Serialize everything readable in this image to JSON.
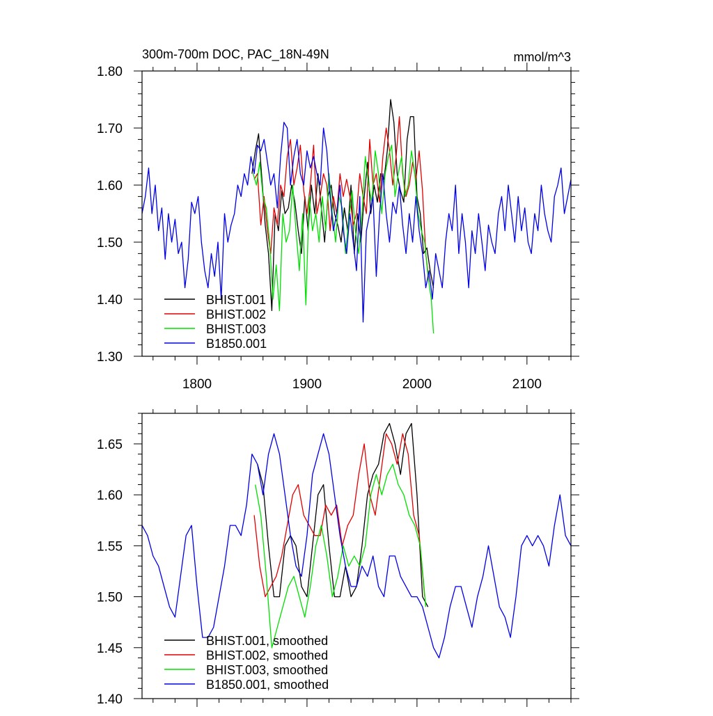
{
  "colors": {
    "black": "#000000",
    "red": "#e00000",
    "green": "#00e000",
    "blue": "#0000e6"
  },
  "chart_data": [
    {
      "type": "line",
      "title": "300m-700m DOC, PAC_18N-49N",
      "units": "mmol/m^3",
      "xlim": [
        1750,
        2140
      ],
      "ylim": [
        1.3,
        1.8
      ],
      "xticks": [
        1800,
        1900,
        2000,
        2100
      ],
      "xtick_labels": [
        "1800",
        "1900",
        "2000",
        "2100"
      ],
      "yticks": [
        1.3,
        1.4,
        1.5,
        1.6,
        1.7,
        1.8
      ],
      "ytick_labels": [
        "1.30",
        "1.40",
        "1.50",
        "1.60",
        "1.70",
        "1.80"
      ],
      "legend_position": "bottom-left",
      "series": [
        {
          "name": "BHIST.001",
          "color": "#000000",
          "x": [
            1850,
            1853,
            1856,
            1859,
            1862,
            1865,
            1868,
            1871,
            1874,
            1877,
            1880,
            1883,
            1886,
            1889,
            1892,
            1895,
            1898,
            1901,
            1904,
            1907,
            1910,
            1913,
            1916,
            1919,
            1922,
            1925,
            1928,
            1931,
            1934,
            1937,
            1940,
            1943,
            1946,
            1949,
            1952,
            1955,
            1958,
            1961,
            1964,
            1967,
            1970,
            1973,
            1976,
            1979,
            1982,
            1985,
            1988,
            1991,
            1994,
            1997,
            2000,
            2003,
            2006,
            2009,
            2012,
            2015
          ],
          "y": [
            1.62,
            1.66,
            1.69,
            1.61,
            1.53,
            1.48,
            1.38,
            1.55,
            1.52,
            1.59,
            1.55,
            1.56,
            1.6,
            1.57,
            1.52,
            1.48,
            1.58,
            1.52,
            1.6,
            1.55,
            1.62,
            1.56,
            1.5,
            1.58,
            1.6,
            1.55,
            1.53,
            1.5,
            1.56,
            1.52,
            1.6,
            1.48,
            1.55,
            1.5,
            1.58,
            1.64,
            1.55,
            1.6,
            1.57,
            1.62,
            1.61,
            1.66,
            1.75,
            1.71,
            1.62,
            1.59,
            1.57,
            1.68,
            1.72,
            1.72,
            1.58,
            1.55,
            1.48,
            1.49,
            1.45,
            1.42
          ]
        },
        {
          "name": "BHIST.002",
          "color": "#e00000",
          "x": [
            1852,
            1855,
            1858,
            1861,
            1864,
            1867,
            1870,
            1873,
            1876,
            1879,
            1882,
            1885,
            1888,
            1891,
            1894,
            1897,
            1900,
            1903,
            1906,
            1909,
            1912,
            1915,
            1918,
            1921,
            1924,
            1927,
            1930,
            1933,
            1936,
            1939,
            1942,
            1945,
            1948,
            1951,
            1954,
            1957,
            1960,
            1963,
            1966,
            1969,
            1972,
            1975,
            1978,
            1981,
            1984,
            1987,
            1990,
            1993,
            1996,
            1999,
            2002,
            2005,
            2008,
            2011
          ],
          "y": [
            1.61,
            1.62,
            1.53,
            1.58,
            1.52,
            1.48,
            1.56,
            1.53,
            1.6,
            1.58,
            1.65,
            1.68,
            1.6,
            1.63,
            1.67,
            1.59,
            1.55,
            1.6,
            1.67,
            1.55,
            1.58,
            1.62,
            1.6,
            1.52,
            1.58,
            1.55,
            1.62,
            1.58,
            1.61,
            1.58,
            1.53,
            1.55,
            1.62,
            1.58,
            1.55,
            1.68,
            1.6,
            1.62,
            1.57,
            1.65,
            1.7,
            1.66,
            1.6,
            1.65,
            1.72,
            1.62,
            1.58,
            1.6,
            1.64,
            1.61,
            1.66,
            1.59,
            1.48,
            1.43
          ]
        },
        {
          "name": "BHIST.003",
          "color": "#00e000",
          "x": [
            1851,
            1854,
            1857,
            1860,
            1863,
            1866,
            1869,
            1872,
            1875,
            1878,
            1881,
            1884,
            1887,
            1890,
            1893,
            1896,
            1899,
            1902,
            1905,
            1908,
            1911,
            1914,
            1917,
            1920,
            1923,
            1926,
            1929,
            1932,
            1935,
            1938,
            1941,
            1944,
            1947,
            1950,
            1953,
            1956,
            1959,
            1962,
            1965,
            1968,
            1971,
            1974,
            1977,
            1980,
            1983,
            1986,
            1989,
            1992,
            1995,
            1998,
            2001,
            2004,
            2007,
            2010,
            2013,
            2015
          ],
          "y": [
            1.62,
            1.6,
            1.64,
            1.58,
            1.56,
            1.5,
            1.4,
            1.46,
            1.38,
            1.55,
            1.5,
            1.52,
            1.6,
            1.52,
            1.45,
            1.55,
            1.39,
            1.58,
            1.52,
            1.55,
            1.5,
            1.58,
            1.52,
            1.62,
            1.55,
            1.5,
            1.58,
            1.56,
            1.48,
            1.54,
            1.59,
            1.52,
            1.48,
            1.55,
            1.65,
            1.6,
            1.57,
            1.66,
            1.62,
            1.55,
            1.62,
            1.65,
            1.67,
            1.58,
            1.62,
            1.65,
            1.58,
            1.6,
            1.66,
            1.62,
            1.55,
            1.52,
            1.5,
            1.44,
            1.4,
            1.34
          ]
        },
        {
          "name": "B1850.001",
          "color": "#0000e6",
          "x": [
            1750,
            1753,
            1756,
            1759,
            1762,
            1765,
            1768,
            1771,
            1774,
            1777,
            1780,
            1783,
            1786,
            1789,
            1792,
            1795,
            1798,
            1801,
            1804,
            1807,
            1810,
            1813,
            1816,
            1819,
            1822,
            1825,
            1828,
            1831,
            1834,
            1837,
            1840,
            1843,
            1846,
            1849,
            1852,
            1855,
            1858,
            1861,
            1864,
            1867,
            1870,
            1873,
            1876,
            1879,
            1882,
            1885,
            1888,
            1891,
            1894,
            1897,
            1900,
            1903,
            1906,
            1909,
            1912,
            1915,
            1918,
            1921,
            1924,
            1927,
            1930,
            1933,
            1936,
            1939,
            1942,
            1945,
            1948,
            1951,
            1954,
            1957,
            1960,
            1963,
            1966,
            1969,
            1972,
            1975,
            1978,
            1981,
            1984,
            1987,
            1990,
            1993,
            1996,
            1999,
            2002,
            2005,
            2008,
            2011,
            2014,
            2017,
            2020,
            2023,
            2026,
            2029,
            2032,
            2035,
            2038,
            2041,
            2044,
            2047,
            2050,
            2053,
            2056,
            2059,
            2062,
            2065,
            2068,
            2071,
            2074,
            2077,
            2080,
            2083,
            2086,
            2089,
            2092,
            2095,
            2098,
            2101,
            2104,
            2107,
            2110,
            2113,
            2116,
            2119,
            2122,
            2125,
            2128,
            2131,
            2134,
            2137,
            2140
          ],
          "y": [
            1.55,
            1.58,
            1.63,
            1.55,
            1.6,
            1.52,
            1.56,
            1.47,
            1.55,
            1.5,
            1.54,
            1.48,
            1.5,
            1.42,
            1.47,
            1.57,
            1.55,
            1.58,
            1.5,
            1.45,
            1.42,
            1.48,
            1.44,
            1.5,
            1.4,
            1.55,
            1.5,
            1.53,
            1.55,
            1.6,
            1.58,
            1.62,
            1.6,
            1.65,
            1.62,
            1.67,
            1.66,
            1.68,
            1.64,
            1.6,
            1.62,
            1.56,
            1.65,
            1.71,
            1.7,
            1.6,
            1.65,
            1.68,
            1.62,
            1.6,
            1.66,
            1.63,
            1.65,
            1.62,
            1.6,
            1.7,
            1.66,
            1.58,
            1.52,
            1.55,
            1.6,
            1.52,
            1.48,
            1.55,
            1.5,
            1.45,
            1.58,
            1.36,
            1.52,
            1.55,
            1.58,
            1.44,
            1.55,
            1.62,
            1.55,
            1.5,
            1.57,
            1.55,
            1.6,
            1.53,
            1.48,
            1.55,
            1.5,
            1.58,
            1.52,
            1.48,
            1.42,
            1.45,
            1.4,
            1.48,
            1.45,
            1.42,
            1.5,
            1.55,
            1.52,
            1.6,
            1.48,
            1.55,
            1.5,
            1.42,
            1.52,
            1.48,
            1.55,
            1.5,
            1.45,
            1.53,
            1.5,
            1.48,
            1.55,
            1.58,
            1.52,
            1.6,
            1.55,
            1.5,
            1.58,
            1.52,
            1.56,
            1.5,
            1.48,
            1.55,
            1.52,
            1.6,
            1.55,
            1.52,
            1.5,
            1.58,
            1.6,
            1.63,
            1.55,
            1.58,
            1.61
          ]
        }
      ]
    },
    {
      "type": "line",
      "title": "",
      "xlim": [
        1750,
        2140
      ],
      "ylim": [
        1.4,
        1.68
      ],
      "xticks": [
        1800,
        1900,
        2000,
        2100
      ],
      "yticks": [
        1.4,
        1.45,
        1.5,
        1.55,
        1.6,
        1.65
      ],
      "ytick_labels": [
        "1.40",
        "1.45",
        "1.50",
        "1.55",
        "1.60",
        "1.65"
      ],
      "legend_position": "bottom-left",
      "series": [
        {
          "name": "BHIST.001, smoothed",
          "color": "#000000",
          "x": [
            1855,
            1860,
            1865,
            1870,
            1875,
            1880,
            1885,
            1890,
            1895,
            1900,
            1905,
            1910,
            1915,
            1920,
            1925,
            1930,
            1935,
            1940,
            1945,
            1950,
            1955,
            1960,
            1965,
            1970,
            1975,
            1980,
            1985,
            1990,
            1995,
            2000,
            2005,
            2010
          ],
          "y": [
            1.63,
            1.61,
            1.55,
            1.5,
            1.5,
            1.55,
            1.56,
            1.55,
            1.51,
            1.5,
            1.55,
            1.6,
            1.61,
            1.55,
            1.5,
            1.5,
            1.53,
            1.5,
            1.51,
            1.55,
            1.6,
            1.62,
            1.63,
            1.66,
            1.67,
            1.65,
            1.62,
            1.66,
            1.67,
            1.6,
            1.5,
            1.49
          ]
        },
        {
          "name": "BHIST.002, smoothed",
          "color": "#e00000",
          "x": [
            1852,
            1857,
            1862,
            1867,
            1872,
            1877,
            1882,
            1887,
            1892,
            1897,
            1902,
            1907,
            1912,
            1917,
            1922,
            1927,
            1932,
            1937,
            1942,
            1947,
            1952,
            1957,
            1962,
            1967,
            1972,
            1977,
            1982,
            1987,
            1992,
            1997,
            2002,
            2007
          ],
          "y": [
            1.58,
            1.53,
            1.5,
            1.51,
            1.52,
            1.54,
            1.57,
            1.6,
            1.61,
            1.58,
            1.57,
            1.56,
            1.56,
            1.59,
            1.58,
            1.59,
            1.55,
            1.57,
            1.58,
            1.62,
            1.65,
            1.6,
            1.58,
            1.62,
            1.66,
            1.65,
            1.63,
            1.66,
            1.64,
            1.58,
            1.56,
            1.5
          ]
        },
        {
          "name": "BHIST.003, smoothed",
          "color": "#00e000",
          "x": [
            1853,
            1858,
            1863,
            1868,
            1873,
            1878,
            1883,
            1888,
            1893,
            1898,
            1903,
            1908,
            1913,
            1918,
            1923,
            1928,
            1933,
            1938,
            1943,
            1948,
            1953,
            1958,
            1963,
            1968,
            1973,
            1978,
            1983,
            1988,
            1993,
            1998,
            2003,
            2008
          ],
          "y": [
            1.61,
            1.58,
            1.52,
            1.45,
            1.47,
            1.49,
            1.51,
            1.52,
            1.5,
            1.48,
            1.51,
            1.55,
            1.57,
            1.54,
            1.5,
            1.52,
            1.55,
            1.53,
            1.54,
            1.53,
            1.55,
            1.6,
            1.62,
            1.6,
            1.62,
            1.63,
            1.61,
            1.6,
            1.58,
            1.57,
            1.55,
            1.49
          ]
        },
        {
          "name": "B1850.001, smoothed",
          "color": "#0000e6",
          "x": [
            1750,
            1755,
            1760,
            1765,
            1770,
            1775,
            1780,
            1785,
            1790,
            1795,
            1800,
            1805,
            1810,
            1815,
            1820,
            1825,
            1830,
            1835,
            1840,
            1845,
            1850,
            1855,
            1860,
            1865,
            1870,
            1875,
            1880,
            1885,
            1890,
            1895,
            1900,
            1905,
            1910,
            1915,
            1920,
            1925,
            1930,
            1935,
            1940,
            1945,
            1950,
            1955,
            1960,
            1965,
            1970,
            1975,
            1980,
            1985,
            1990,
            1995,
            2000,
            2005,
            2010,
            2015,
            2020,
            2025,
            2030,
            2035,
            2040,
            2045,
            2050,
            2055,
            2060,
            2065,
            2070,
            2075,
            2080,
            2085,
            2090,
            2095,
            2100,
            2105,
            2110,
            2115,
            2120,
            2125,
            2130,
            2135,
            2140
          ],
          "y": [
            1.57,
            1.56,
            1.54,
            1.53,
            1.51,
            1.49,
            1.48,
            1.52,
            1.56,
            1.57,
            1.51,
            1.46,
            1.46,
            1.47,
            1.5,
            1.53,
            1.57,
            1.57,
            1.56,
            1.59,
            1.64,
            1.63,
            1.6,
            1.64,
            1.66,
            1.64,
            1.6,
            1.56,
            1.53,
            1.52,
            1.56,
            1.62,
            1.64,
            1.66,
            1.64,
            1.6,
            1.56,
            1.53,
            1.51,
            1.51,
            1.53,
            1.52,
            1.54,
            1.51,
            1.5,
            1.54,
            1.54,
            1.52,
            1.51,
            1.5,
            1.5,
            1.49,
            1.47,
            1.45,
            1.44,
            1.46,
            1.49,
            1.51,
            1.51,
            1.49,
            1.47,
            1.5,
            1.52,
            1.55,
            1.52,
            1.49,
            1.48,
            1.46,
            1.5,
            1.55,
            1.56,
            1.55,
            1.56,
            1.55,
            1.53,
            1.57,
            1.6,
            1.56,
            1.55
          ]
        }
      ]
    }
  ]
}
